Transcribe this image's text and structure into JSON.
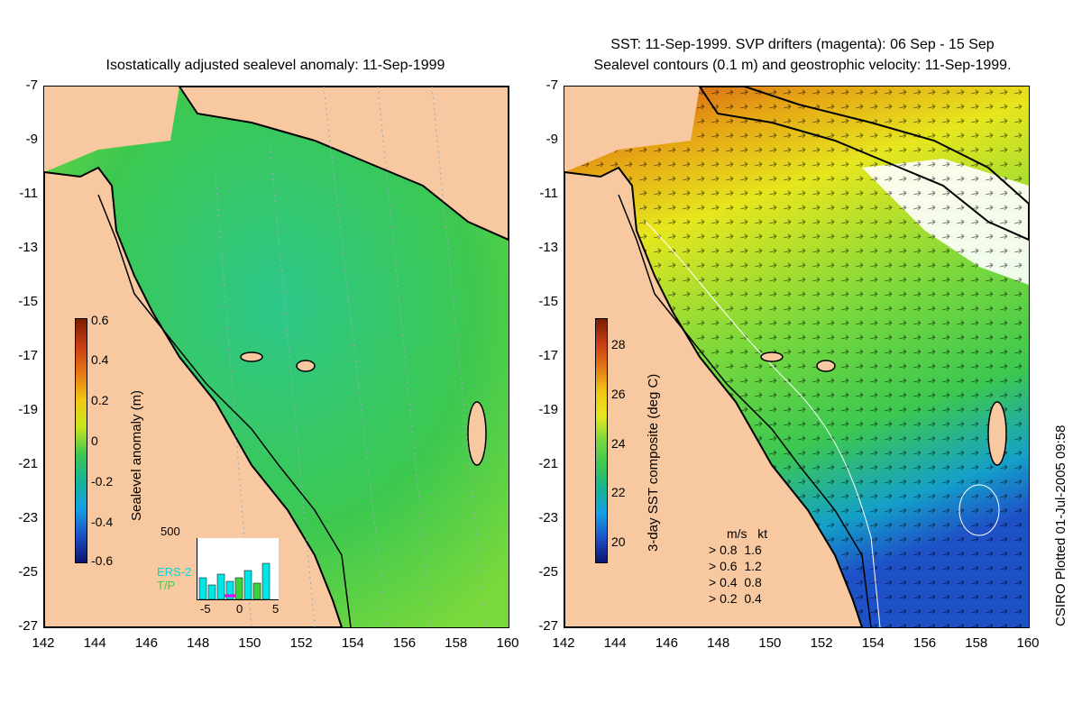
{
  "left_panel": {
    "title": "Isostatically adjusted sealevel anomaly: 11-Sep-1999",
    "colorbar": {
      "title": "Sealevel anomaly (m)",
      "ticks": [
        "0.6",
        "0.4",
        "0.2",
        "0",
        "-0.2",
        "-0.4",
        "-0.6"
      ]
    },
    "inset": {
      "max_label": "500",
      "series": [
        "ERS-2",
        "T/P"
      ],
      "x_ticks": [
        "-5",
        "0",
        "5"
      ]
    }
  },
  "right_panel": {
    "title_line1": "SST: 11-Sep-1999. SVP drifters (magenta): 06 Sep - 15 Sep",
    "title_line2": "Sealevel contours (0.1 m) and geostrophic velocity: 11-Sep-1999.",
    "colorbar": {
      "title": "3-day SST composite (deg C)",
      "ticks": [
        "28",
        "26",
        "24",
        "22",
        "20"
      ]
    },
    "velocity_legend": {
      "header": [
        "m/s",
        "kt"
      ],
      "rows": [
        [
          "0.8",
          "1.6"
        ],
        [
          "0.6",
          "1.2"
        ],
        [
          "0.4",
          "0.8"
        ],
        [
          "0.2",
          "0.4"
        ]
      ]
    }
  },
  "axes": {
    "y_ticks": [
      "-7",
      "-9",
      "-11",
      "-13",
      "-15",
      "-17",
      "-19",
      "-21",
      "-23",
      "-25",
      "-27"
    ],
    "x_ticks": [
      "142",
      "144",
      "146",
      "148",
      "150",
      "152",
      "154",
      "156",
      "158",
      "160"
    ]
  },
  "footer": {
    "credit": "CSIRO Plotted 01-Jul-2005 09:58"
  },
  "colors": {
    "land": "#f8c9a0",
    "sea_anomaly": "#3cc83c",
    "sst_cold": "#1e50c8",
    "sst_warm": "#c83c14"
  }
}
